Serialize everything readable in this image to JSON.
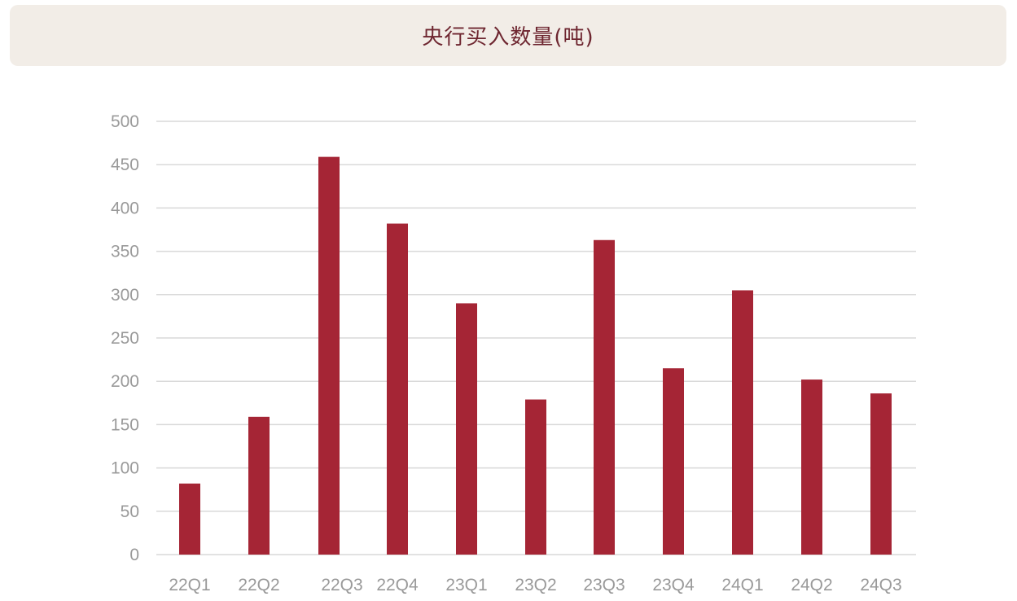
{
  "colors": {
    "title_background": "#F2EDE7",
    "title_text": "#6E2630",
    "bar": "#A52535",
    "grid": "#D9D9D9",
    "axis_text": "#9A9A9A"
  },
  "header": {
    "title": "央行买入数量(吨)"
  },
  "chart_data": {
    "type": "bar",
    "title": "央行买入数量(吨)",
    "xlabel": "",
    "ylabel": "",
    "categories": [
      "22Q1",
      "22Q2",
      "22Q3",
      "22Q4",
      "23Q1",
      "23Q2",
      "23Q3",
      "23Q4",
      "24Q1",
      "24Q2",
      "24Q3"
    ],
    "values": [
      82,
      159,
      459,
      382,
      290,
      179,
      363,
      215,
      305,
      202,
      186
    ],
    "ylim": [
      0,
      500
    ],
    "yticks": [
      "0",
      "50",
      "100",
      "150",
      "200",
      "250",
      "300",
      "350",
      "400",
      "450",
      "500"
    ],
    "grid": true,
    "legend": "none"
  }
}
